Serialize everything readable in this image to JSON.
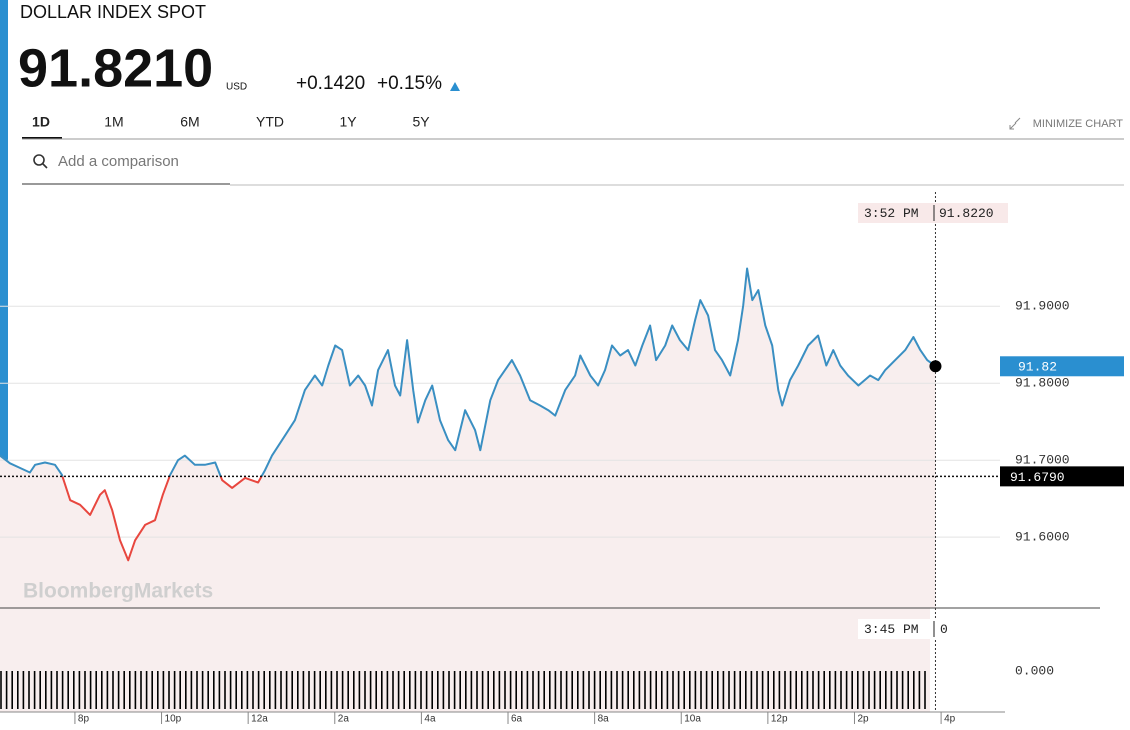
{
  "header": {
    "title": "DOLLAR INDEX SPOT",
    "price": "91.8210",
    "currency": "USD",
    "change": "+0.1420",
    "change_percent": "+0.15%"
  },
  "tabs": [
    "1D",
    "1M",
    "6M",
    "YTD",
    "1Y",
    "5Y"
  ],
  "selected_tab": 0,
  "minimize_label": "MINIMIZE CHART",
  "search_placeholder": "Add a comparison",
  "chart_data": {
    "type": "line",
    "watermark": "BloombergMarkets",
    "x": [
      18.27,
      18.5,
      18.73,
      18.96,
      19.08,
      19.31,
      19.54,
      19.7,
      19.89,
      20.12,
      20.35,
      20.58,
      20.69,
      20.86,
      21.04,
      21.23,
      21.39,
      21.62,
      21.85,
      22.03,
      22.2,
      22.38,
      22.54,
      22.77,
      23.0,
      23.24,
      23.4,
      23.63,
      23.93,
      24.23,
      24.39,
      24.55,
      24.85,
      25.08,
      25.31,
      25.54,
      25.71,
      25.85,
      26.01,
      26.17,
      26.35,
      26.54,
      26.7,
      26.86,
      27.0,
      27.23,
      27.39,
      27.51,
      27.67,
      27.81,
      27.92,
      28.09,
      28.25,
      28.43,
      28.62,
      28.78,
      29.01,
      29.24,
      29.36,
      29.59,
      29.77,
      29.93,
      30.09,
      30.28,
      30.51,
      30.74,
      30.93,
      31.09,
      31.32,
      31.55,
      31.67,
      31.9,
      32.08,
      32.24,
      32.4,
      32.59,
      32.77,
      32.94,
      33.1,
      33.28,
      33.42,
      33.63,
      33.79,
      33.97,
      34.16,
      34.32,
      34.44,
      34.62,
      34.78,
      34.94,
      35.13,
      35.31,
      35.43,
      35.52,
      35.64,
      35.78,
      35.94,
      36.1,
      36.24,
      36.33,
      36.51,
      36.7,
      36.93,
      37.16,
      37.35,
      37.51,
      37.67,
      37.85,
      38.09,
      38.36,
      38.55,
      38.71,
      38.94,
      39.17,
      39.36,
      39.52,
      39.68,
      39.87
    ],
    "values": [
      91.706,
      91.696,
      91.69,
      91.684,
      91.694,
      91.697,
      91.694,
      91.681,
      91.648,
      91.642,
      91.629,
      91.655,
      91.661,
      91.635,
      91.596,
      91.57,
      91.596,
      91.616,
      91.622,
      91.655,
      91.681,
      91.7,
      91.706,
      91.694,
      91.694,
      91.697,
      91.674,
      91.664,
      91.677,
      91.671,
      91.687,
      91.706,
      91.732,
      91.752,
      91.791,
      91.81,
      91.797,
      91.823,
      91.849,
      91.843,
      91.797,
      91.81,
      91.797,
      91.771,
      91.817,
      91.843,
      91.797,
      91.784,
      91.856,
      91.791,
      91.749,
      91.778,
      91.797,
      91.752,
      91.726,
      91.713,
      91.765,
      91.739,
      91.713,
      91.778,
      91.804,
      91.817,
      91.83,
      91.81,
      91.778,
      91.771,
      91.765,
      91.758,
      91.791,
      91.81,
      91.836,
      91.81,
      91.797,
      91.817,
      91.849,
      91.836,
      91.843,
      91.823,
      91.849,
      91.875,
      91.83,
      91.849,
      91.875,
      91.856,
      91.843,
      91.882,
      91.908,
      91.888,
      91.843,
      91.83,
      91.81,
      91.856,
      91.901,
      91.949,
      91.908,
      91.921,
      91.875,
      91.849,
      91.791,
      91.771,
      91.804,
      91.823,
      91.849,
      91.862,
      91.823,
      91.843,
      91.823,
      91.81,
      91.797,
      91.81,
      91.804,
      91.817,
      91.83,
      91.843,
      91.86,
      91.843,
      91.83,
      91.822
    ],
    "up_color": "#3a8fc2",
    "down_color": "#e8473f",
    "fill_color": "#f8eeee",
    "xlim": [
      18.27,
      41.36
    ],
    "ylim": [
      91.508,
      92.051
    ],
    "xticks": [
      {
        "value": 20,
        "label": "8p"
      },
      {
        "value": 22,
        "label": "10p"
      },
      {
        "value": 24,
        "label": "12a"
      },
      {
        "value": 26,
        "label": "2a"
      },
      {
        "value": 28,
        "label": "4a"
      },
      {
        "value": 30,
        "label": "6a"
      },
      {
        "value": 32,
        "label": "8a"
      },
      {
        "value": 34,
        "label": "10a"
      },
      {
        "value": 36,
        "label": "12p"
      },
      {
        "value": 38,
        "label": "2p"
      },
      {
        "value": 40,
        "label": "4p"
      }
    ],
    "yticks": [
      {
        "value": 91.6,
        "label": "91.6000"
      },
      {
        "value": 91.7,
        "label": "91.7000"
      },
      {
        "value": 91.8,
        "label": "91.8000"
      },
      {
        "value": 91.9,
        "label": "91.9000"
      }
    ],
    "grid": true,
    "previous_close": {
      "value": 91.679,
      "label": "91.6790"
    },
    "last_value_label": "91.82",
    "crosshair": {
      "x": 39.87,
      "value": 91.822,
      "time_label": "3:52 PM",
      "value_label": "91.8220"
    },
    "volume": {
      "time_label": "3:45 PM",
      "value_label": "0",
      "axis_label": "0.000"
    }
  }
}
